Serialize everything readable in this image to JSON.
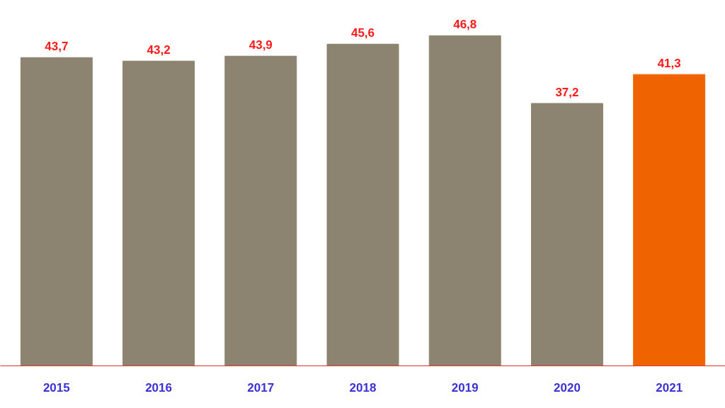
{
  "chart_data": {
    "type": "bar",
    "categories": [
      "2015",
      "2016",
      "2017",
      "2018",
      "2019",
      "2020",
      "2021"
    ],
    "values": [
      43.7,
      43.2,
      43.9,
      45.6,
      46.8,
      37.2,
      41.3
    ],
    "colors": [
      "#8c8470",
      "#8c8470",
      "#8c8470",
      "#8c8470",
      "#8c8470",
      "#8c8470",
      "#f06400"
    ],
    "value_labels": [
      "43,7",
      "43,2",
      "43,9",
      "45,6",
      "46,8",
      "37,2",
      "41,3"
    ],
    "grid": false,
    "tick_labels": "x"
  }
}
